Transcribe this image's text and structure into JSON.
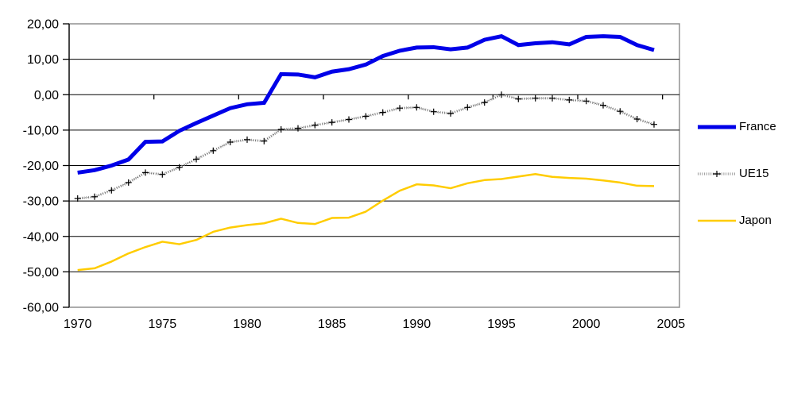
{
  "chart_data": {
    "type": "line",
    "title": "",
    "xlabel": "",
    "ylabel": "",
    "x": [
      1970,
      1971,
      1972,
      1973,
      1974,
      1975,
      1976,
      1977,
      1978,
      1979,
      1980,
      1981,
      1982,
      1983,
      1984,
      1985,
      1986,
      1987,
      1988,
      1989,
      1990,
      1991,
      1992,
      1993,
      1994,
      1995,
      1996,
      1997,
      1998,
      1999,
      2000,
      2001,
      2002,
      2003,
      2004
    ],
    "x_axis": {
      "tick_labels": [
        "1970",
        "1975",
        "1980",
        "1985",
        "1990",
        "1995",
        "2000",
        "2005"
      ],
      "category_count": 36,
      "tick_interval_categories": 5
    },
    "y_axis": {
      "tick_labels": [
        "20,00",
        "10,00",
        "0,00",
        "-10,00",
        "-20,00",
        "-30,00",
        "-40,00",
        "-50,00",
        "-60,00"
      ],
      "max": 20,
      "min": -60,
      "step": 10,
      "number_format": "decimal-comma"
    },
    "grid": "horizontal",
    "legend_position": "right",
    "series": [
      {
        "name": "France",
        "color": "#0000E8",
        "style": "solid-thick",
        "values": [
          -22.0,
          -21.3,
          -20.0,
          -18.3,
          -13.3,
          -13.2,
          -10.2,
          -8.0,
          -5.9,
          -3.8,
          -2.7,
          -2.3,
          5.8,
          5.7,
          4.9,
          6.5,
          7.2,
          8.5,
          10.9,
          12.4,
          13.3,
          13.4,
          12.8,
          13.3,
          15.5,
          16.5,
          14.0,
          14.5,
          14.8,
          14.2,
          16.3,
          16.5,
          16.3,
          14.0,
          12.6
        ]
      },
      {
        "name": "UE15",
        "color": "#999999",
        "marker": "plus",
        "marker_color": "#000000",
        "style": "dotted-with-plus-markers",
        "values": [
          -29.3,
          -28.8,
          -27.0,
          -24.8,
          -22.0,
          -22.5,
          -20.5,
          -18.2,
          -15.8,
          -13.4,
          -12.7,
          -13.1,
          -9.8,
          -9.5,
          -8.6,
          -7.8,
          -7.0,
          -6.1,
          -5.0,
          -3.8,
          -3.6,
          -4.8,
          -5.3,
          -3.6,
          -2.2,
          0.0,
          -1.2,
          -1.0,
          -1.0,
          -1.5,
          -1.8,
          -3.0,
          -4.7,
          -6.9,
          -8.4
        ]
      },
      {
        "name": "Japon",
        "color": "#FFCC00",
        "style": "solid-thin",
        "values": [
          -49.5,
          -49.0,
          -47.1,
          -44.8,
          -43.0,
          -41.5,
          -42.2,
          -41.0,
          -38.7,
          -37.5,
          -36.8,
          -36.3,
          -35.0,
          -36.2,
          -36.5,
          -34.8,
          -34.7,
          -33.0,
          -29.9,
          -27.1,
          -25.3,
          -25.6,
          -26.4,
          -25.0,
          -24.1,
          -23.8,
          -23.1,
          -22.4,
          -23.2,
          -23.5,
          -23.7,
          -24.2,
          -24.8,
          -25.7,
          -25.8
        ]
      }
    ],
    "colors": {
      "background": "#FFFFFF",
      "gridline": "#000000",
      "axis": "#000000",
      "plot_border": "#909090",
      "text": "#000000"
    }
  },
  "legend": {
    "items": [
      {
        "label": "France"
      },
      {
        "label": "UE15"
      },
      {
        "label": "Japon"
      }
    ]
  }
}
